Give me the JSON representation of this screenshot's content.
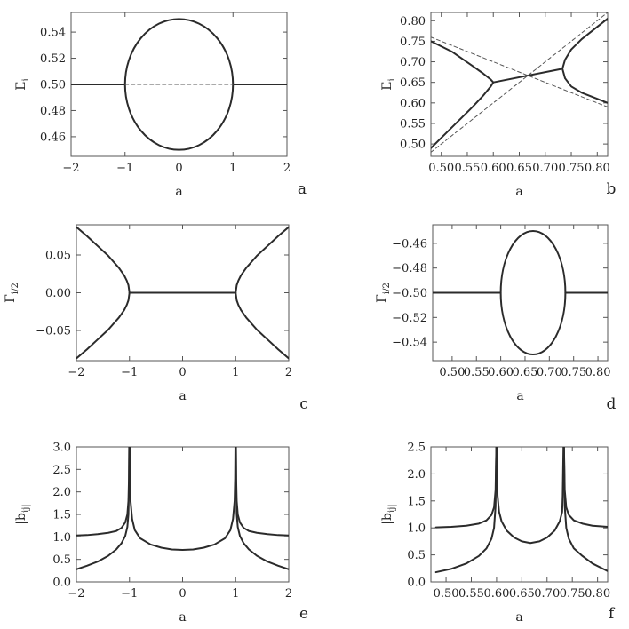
{
  "colors": {
    "curve": "#2b2b2b",
    "frame": "#555555",
    "dashed": "#555555",
    "background": "#ffffff"
  },
  "chart_data": [
    {
      "panel_label": "a",
      "type": "line",
      "xlabel": "a",
      "ylabel": "E_i",
      "xlim": [
        -2,
        2
      ],
      "ylim": [
        0.445,
        0.555
      ],
      "xticks": [
        -2,
        -1,
        0,
        1,
        2
      ],
      "xtick_labels": [
        "−2",
        "−1",
        "0",
        "1",
        "2"
      ],
      "yticks": [
        0.46,
        0.48,
        0.5,
        0.52,
        0.54
      ],
      "ytick_labels": [
        "0.46",
        "0.48",
        "0.50",
        "0.52",
        "0.54"
      ],
      "series": [
        {
          "style": "solid",
          "x": [
            -2,
            -1
          ],
          "y": [
            0.5,
            0.5
          ]
        },
        {
          "style": "solid",
          "x": [
            1,
            2
          ],
          "y": [
            0.5,
            0.5
          ]
        },
        {
          "style": "solid",
          "shape": "ellipse",
          "cx": 0,
          "cy": 0.5,
          "rx": 1,
          "ry": 0.05
        },
        {
          "style": "dashed",
          "x": [
            -1,
            1
          ],
          "y": [
            0.5,
            0.5
          ]
        }
      ]
    },
    {
      "panel_label": "b",
      "type": "line",
      "xlabel": "a",
      "ylabel": "E_i",
      "xlim": [
        0.48,
        0.82
      ],
      "ylim": [
        0.47,
        0.82
      ],
      "xticks": [
        0.5,
        0.55,
        0.6,
        0.65,
        0.7,
        0.75,
        0.8
      ],
      "xtick_labels": [
        "0.50",
        "0.55",
        "0.60",
        "0.65",
        "0.70",
        "0.75",
        "0.80"
      ],
      "yticks": [
        0.5,
        0.55,
        0.6,
        0.65,
        0.7,
        0.75,
        0.8
      ],
      "ytick_labels": [
        "0.50",
        "0.55",
        "0.60",
        "0.65",
        "0.70",
        "0.75",
        "0.80"
      ],
      "series": [
        {
          "style": "solid",
          "x": [
            0.48,
            0.52,
            0.56,
            0.58,
            0.595,
            0.6
          ],
          "y": [
            0.75,
            0.725,
            0.69,
            0.672,
            0.657,
            0.65
          ]
        },
        {
          "style": "solid",
          "x": [
            0.48,
            0.52,
            0.56,
            0.58,
            0.595,
            0.6
          ],
          "y": [
            0.49,
            0.54,
            0.59,
            0.617,
            0.64,
            0.65
          ]
        },
        {
          "style": "solid",
          "x": [
            0.6,
            0.733
          ],
          "y": [
            0.65,
            0.683
          ]
        },
        {
          "style": "solid",
          "x": [
            0.733,
            0.738,
            0.75,
            0.77,
            0.8,
            0.82
          ],
          "y": [
            0.683,
            0.705,
            0.73,
            0.755,
            0.785,
            0.805
          ]
        },
        {
          "style": "solid",
          "x": [
            0.733,
            0.738,
            0.75,
            0.77,
            0.8,
            0.82
          ],
          "y": [
            0.683,
            0.66,
            0.64,
            0.625,
            0.61,
            0.6
          ]
        },
        {
          "style": "dashed",
          "x": [
            0.48,
            0.82
          ],
          "y": [
            0.76,
            0.59
          ]
        },
        {
          "style": "dashed",
          "x": [
            0.48,
            0.82
          ],
          "y": [
            0.48,
            0.82
          ]
        }
      ]
    },
    {
      "panel_label": "c",
      "type": "line",
      "xlabel": "a",
      "ylabel": "Γ_i/2",
      "xlim": [
        -2,
        2
      ],
      "ylim": [
        -0.09,
        0.09
      ],
      "xticks": [
        -2,
        -1,
        0,
        1,
        2
      ],
      "xtick_labels": [
        "−2",
        "−1",
        "0",
        "1",
        "2"
      ],
      "yticks": [
        -0.05,
        0,
        0.05
      ],
      "ytick_labels": [
        "−0.05",
        "0.00",
        "0.05"
      ],
      "series": [
        {
          "style": "solid",
          "x": [
            -2,
            -1.8,
            -1.6,
            -1.4,
            -1.2,
            -1.1,
            -1.05,
            -1.02,
            -1
          ],
          "y": [
            0.087,
            0.075,
            0.062,
            0.049,
            0.033,
            0.023,
            0.016,
            0.01,
            0
          ]
        },
        {
          "style": "solid",
          "x": [
            -2,
            -1.8,
            -1.6,
            -1.4,
            -1.2,
            -1.1,
            -1.05,
            -1.02,
            -1
          ],
          "y": [
            -0.087,
            -0.075,
            -0.062,
            -0.049,
            -0.033,
            -0.023,
            -0.016,
            -0.01,
            0
          ]
        },
        {
          "style": "solid",
          "x": [
            -1,
            1
          ],
          "y": [
            0,
            0
          ]
        },
        {
          "style": "solid",
          "x": [
            1,
            1.02,
            1.05,
            1.1,
            1.2,
            1.4,
            1.6,
            1.8,
            2
          ],
          "y": [
            0,
            0.01,
            0.016,
            0.023,
            0.033,
            0.049,
            0.062,
            0.075,
            0.087
          ]
        },
        {
          "style": "solid",
          "x": [
            1,
            1.02,
            1.05,
            1.1,
            1.2,
            1.4,
            1.6,
            1.8,
            2
          ],
          "y": [
            0,
            -0.01,
            -0.016,
            -0.023,
            -0.033,
            -0.049,
            -0.062,
            -0.075,
            -0.087
          ]
        }
      ]
    },
    {
      "panel_label": "d",
      "type": "line",
      "xlabel": "a",
      "ylabel": "Γ_i/2",
      "xlim": [
        0.46,
        0.82
      ],
      "ylim": [
        -0.555,
        -0.445
      ],
      "xticks": [
        0.5,
        0.55,
        0.6,
        0.65,
        0.7,
        0.75,
        0.8
      ],
      "xtick_labels": [
        "0.50",
        "0.55",
        "0.60",
        "0.65",
        "0.70",
        "0.75",
        "0.80"
      ],
      "yticks": [
        -0.54,
        -0.52,
        -0.5,
        -0.48,
        -0.46
      ],
      "ytick_labels": [
        "−0.54",
        "−0.52",
        "−0.50",
        "−0.48",
        "−0.46"
      ],
      "series": [
        {
          "style": "solid",
          "x": [
            0.46,
            0.6
          ],
          "y": [
            -0.5,
            -0.5
          ]
        },
        {
          "style": "solid",
          "x": [
            0.733,
            0.82
          ],
          "y": [
            -0.5,
            -0.5
          ]
        },
        {
          "style": "solid",
          "shape": "ellipse",
          "cx": 0.6665,
          "cy": -0.5,
          "rx": 0.0665,
          "ry": 0.05
        }
      ]
    },
    {
      "panel_label": "e",
      "type": "line",
      "xlabel": "a",
      "ylabel": "|b_ij|",
      "xlim": [
        -2,
        2
      ],
      "ylim": [
        0,
        3
      ],
      "xticks": [
        -2,
        -1,
        0,
        1,
        2
      ],
      "xtick_labels": [
        "−2",
        "−1",
        "0",
        "1",
        "2"
      ],
      "yticks": [
        0,
        0.5,
        1,
        1.5,
        2,
        2.5,
        3
      ],
      "ytick_labels": [
        "0.0",
        "0.5",
        "1.0",
        "1.5",
        "2.0",
        "2.5",
        "3.0"
      ],
      "series": [
        {
          "style": "solid",
          "x": [
            -2,
            -1.8,
            -1.6,
            -1.4,
            -1.25,
            -1.15,
            -1.08,
            -1.04,
            -1.02,
            -1.01,
            -1.005
          ],
          "y": [
            1.03,
            1.04,
            1.06,
            1.09,
            1.13,
            1.2,
            1.32,
            1.5,
            1.8,
            2.3,
            3.0
          ]
        },
        {
          "style": "solid",
          "x": [
            -2,
            -1.8,
            -1.6,
            -1.4,
            -1.25,
            -1.15,
            -1.08,
            -1.04,
            -1.02,
            -1.01,
            -1.005
          ],
          "y": [
            0.28,
            0.36,
            0.45,
            0.58,
            0.72,
            0.86,
            1.02,
            1.22,
            1.5,
            2.0,
            3.0
          ]
        },
        {
          "style": "solid",
          "x": [
            -0.995,
            -0.99,
            -0.98,
            -0.95,
            -0.9,
            -0.8,
            -0.6,
            -0.4,
            -0.2,
            0,
            0.2,
            0.4,
            0.6,
            0.8,
            0.9,
            0.95,
            0.98,
            0.99,
            0.995
          ],
          "y": [
            3.0,
            2.3,
            1.8,
            1.4,
            1.15,
            0.97,
            0.83,
            0.76,
            0.72,
            0.71,
            0.72,
            0.76,
            0.83,
            0.97,
            1.15,
            1.4,
            1.8,
            2.3,
            3.0
          ]
        },
        {
          "style": "solid",
          "x": [
            1.005,
            1.01,
            1.02,
            1.04,
            1.08,
            1.15,
            1.25,
            1.4,
            1.6,
            1.8,
            2
          ],
          "y": [
            3.0,
            2.3,
            1.8,
            1.5,
            1.32,
            1.2,
            1.13,
            1.09,
            1.06,
            1.04,
            1.03
          ]
        },
        {
          "style": "solid",
          "x": [
            1.005,
            1.01,
            1.02,
            1.04,
            1.08,
            1.15,
            1.25,
            1.4,
            1.6,
            1.8,
            2
          ],
          "y": [
            3.0,
            2.0,
            1.5,
            1.22,
            1.02,
            0.86,
            0.72,
            0.58,
            0.45,
            0.36,
            0.28
          ]
        }
      ]
    },
    {
      "panel_label": "f",
      "type": "line",
      "xlabel": "a",
      "ylabel": "|b_ij|",
      "xlim": [
        0.47,
        0.82
      ],
      "ylim": [
        0,
        2.5
      ],
      "xticks": [
        0.5,
        0.55,
        0.6,
        0.65,
        0.7,
        0.75,
        0.8
      ],
      "xtick_labels": [
        "0.50",
        "0.55",
        "0.60",
        "0.65",
        "0.70",
        "0.75",
        "0.80"
      ],
      "yticks": [
        0,
        0.5,
        1,
        1.5,
        2,
        2.5
      ],
      "ytick_labels": [
        "0.0",
        "0.5",
        "1.0",
        "1.5",
        "2.0",
        "2.5"
      ],
      "series": [
        {
          "style": "solid",
          "x": [
            0.48,
            0.51,
            0.54,
            0.565,
            0.58,
            0.59,
            0.595,
            0.598,
            0.5995
          ],
          "y": [
            1.01,
            1.02,
            1.04,
            1.08,
            1.14,
            1.24,
            1.38,
            1.7,
            2.5
          ]
        },
        {
          "style": "solid",
          "x": [
            0.48,
            0.51,
            0.54,
            0.565,
            0.58,
            0.59,
            0.595,
            0.598,
            0.5995
          ],
          "y": [
            0.18,
            0.24,
            0.34,
            0.48,
            0.62,
            0.8,
            1.0,
            1.4,
            2.5
          ]
        },
        {
          "style": "solid",
          "x": [
            0.6005,
            0.602,
            0.605,
            0.61,
            0.62,
            0.635,
            0.65,
            0.667,
            0.685,
            0.7,
            0.715,
            0.725,
            0.73,
            0.731,
            0.7325
          ],
          "y": [
            2.5,
            1.6,
            1.3,
            1.12,
            0.95,
            0.82,
            0.75,
            0.72,
            0.75,
            0.82,
            0.95,
            1.12,
            1.3,
            1.6,
            2.5
          ]
        },
        {
          "style": "solid",
          "x": [
            0.7335,
            0.735,
            0.738,
            0.743,
            0.753,
            0.77,
            0.79,
            0.82
          ],
          "y": [
            2.5,
            1.7,
            1.38,
            1.24,
            1.14,
            1.08,
            1.04,
            1.02
          ]
        },
        {
          "style": "solid",
          "x": [
            0.7335,
            0.735,
            0.738,
            0.743,
            0.753,
            0.77,
            0.79,
            0.82
          ],
          "y": [
            2.5,
            1.4,
            1.0,
            0.8,
            0.62,
            0.48,
            0.34,
            0.2
          ]
        }
      ]
    }
  ]
}
